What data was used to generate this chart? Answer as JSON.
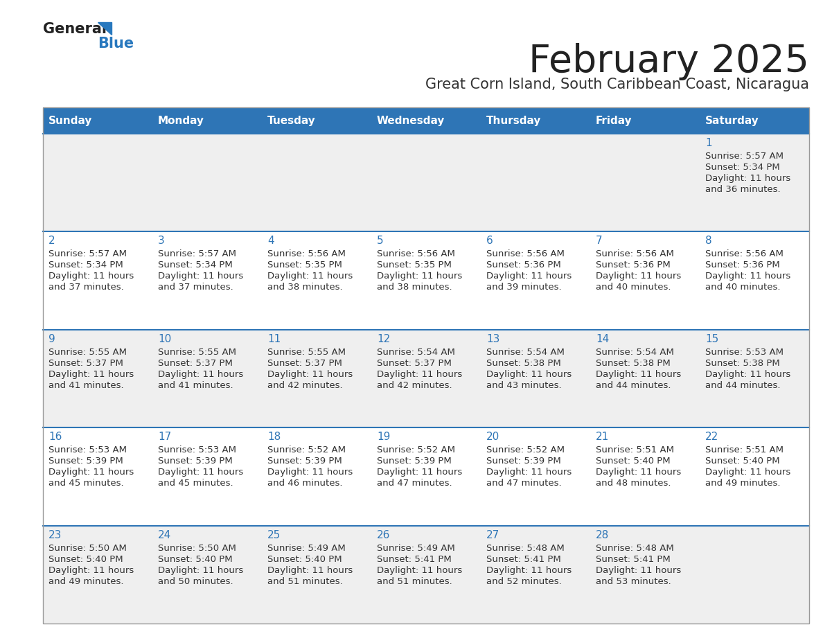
{
  "title": "February 2025",
  "subtitle": "Great Corn Island, South Caribbean Coast, Nicaragua",
  "header_color": "#2E75B6",
  "header_text_color": "#FFFFFF",
  "day_headers": [
    "Sunday",
    "Monday",
    "Tuesday",
    "Wednesday",
    "Thursday",
    "Friday",
    "Saturday"
  ],
  "title_color": "#222222",
  "subtitle_color": "#333333",
  "cell_bg": "#EFEFEF",
  "cell_bg_white": "#FFFFFF",
  "separator_color": "#2E75B6",
  "day_num_color": "#2E75B6",
  "text_color": "#333333",
  "logo_general_color": "#222222",
  "logo_blue_color": "#2878BE",
  "calendar_data": [
    {
      "day": 1,
      "col": 6,
      "row": 0,
      "sunrise": "5:57 AM",
      "sunset": "5:34 PM",
      "daylight_hours": 11,
      "daylight_minutes": 36
    },
    {
      "day": 2,
      "col": 0,
      "row": 1,
      "sunrise": "5:57 AM",
      "sunset": "5:34 PM",
      "daylight_hours": 11,
      "daylight_minutes": 37
    },
    {
      "day": 3,
      "col": 1,
      "row": 1,
      "sunrise": "5:57 AM",
      "sunset": "5:34 PM",
      "daylight_hours": 11,
      "daylight_minutes": 37
    },
    {
      "day": 4,
      "col": 2,
      "row": 1,
      "sunrise": "5:56 AM",
      "sunset": "5:35 PM",
      "daylight_hours": 11,
      "daylight_minutes": 38
    },
    {
      "day": 5,
      "col": 3,
      "row": 1,
      "sunrise": "5:56 AM",
      "sunset": "5:35 PM",
      "daylight_hours": 11,
      "daylight_minutes": 38
    },
    {
      "day": 6,
      "col": 4,
      "row": 1,
      "sunrise": "5:56 AM",
      "sunset": "5:36 PM",
      "daylight_hours": 11,
      "daylight_minutes": 39
    },
    {
      "day": 7,
      "col": 5,
      "row": 1,
      "sunrise": "5:56 AM",
      "sunset": "5:36 PM",
      "daylight_hours": 11,
      "daylight_minutes": 40
    },
    {
      "day": 8,
      "col": 6,
      "row": 1,
      "sunrise": "5:56 AM",
      "sunset": "5:36 PM",
      "daylight_hours": 11,
      "daylight_minutes": 40
    },
    {
      "day": 9,
      "col": 0,
      "row": 2,
      "sunrise": "5:55 AM",
      "sunset": "5:37 PM",
      "daylight_hours": 11,
      "daylight_minutes": 41
    },
    {
      "day": 10,
      "col": 1,
      "row": 2,
      "sunrise": "5:55 AM",
      "sunset": "5:37 PM",
      "daylight_hours": 11,
      "daylight_minutes": 41
    },
    {
      "day": 11,
      "col": 2,
      "row": 2,
      "sunrise": "5:55 AM",
      "sunset": "5:37 PM",
      "daylight_hours": 11,
      "daylight_minutes": 42
    },
    {
      "day": 12,
      "col": 3,
      "row": 2,
      "sunrise": "5:54 AM",
      "sunset": "5:37 PM",
      "daylight_hours": 11,
      "daylight_minutes": 42
    },
    {
      "day": 13,
      "col": 4,
      "row": 2,
      "sunrise": "5:54 AM",
      "sunset": "5:38 PM",
      "daylight_hours": 11,
      "daylight_minutes": 43
    },
    {
      "day": 14,
      "col": 5,
      "row": 2,
      "sunrise": "5:54 AM",
      "sunset": "5:38 PM",
      "daylight_hours": 11,
      "daylight_minutes": 44
    },
    {
      "day": 15,
      "col": 6,
      "row": 2,
      "sunrise": "5:53 AM",
      "sunset": "5:38 PM",
      "daylight_hours": 11,
      "daylight_minutes": 44
    },
    {
      "day": 16,
      "col": 0,
      "row": 3,
      "sunrise": "5:53 AM",
      "sunset": "5:39 PM",
      "daylight_hours": 11,
      "daylight_minutes": 45
    },
    {
      "day": 17,
      "col": 1,
      "row": 3,
      "sunrise": "5:53 AM",
      "sunset": "5:39 PM",
      "daylight_hours": 11,
      "daylight_minutes": 45
    },
    {
      "day": 18,
      "col": 2,
      "row": 3,
      "sunrise": "5:52 AM",
      "sunset": "5:39 PM",
      "daylight_hours": 11,
      "daylight_minutes": 46
    },
    {
      "day": 19,
      "col": 3,
      "row": 3,
      "sunrise": "5:52 AM",
      "sunset": "5:39 PM",
      "daylight_hours": 11,
      "daylight_minutes": 47
    },
    {
      "day": 20,
      "col": 4,
      "row": 3,
      "sunrise": "5:52 AM",
      "sunset": "5:39 PM",
      "daylight_hours": 11,
      "daylight_minutes": 47
    },
    {
      "day": 21,
      "col": 5,
      "row": 3,
      "sunrise": "5:51 AM",
      "sunset": "5:40 PM",
      "daylight_hours": 11,
      "daylight_minutes": 48
    },
    {
      "day": 22,
      "col": 6,
      "row": 3,
      "sunrise": "5:51 AM",
      "sunset": "5:40 PM",
      "daylight_hours": 11,
      "daylight_minutes": 49
    },
    {
      "day": 23,
      "col": 0,
      "row": 4,
      "sunrise": "5:50 AM",
      "sunset": "5:40 PM",
      "daylight_hours": 11,
      "daylight_minutes": 49
    },
    {
      "day": 24,
      "col": 1,
      "row": 4,
      "sunrise": "5:50 AM",
      "sunset": "5:40 PM",
      "daylight_hours": 11,
      "daylight_minutes": 50
    },
    {
      "day": 25,
      "col": 2,
      "row": 4,
      "sunrise": "5:49 AM",
      "sunset": "5:40 PM",
      "daylight_hours": 11,
      "daylight_minutes": 51
    },
    {
      "day": 26,
      "col": 3,
      "row": 4,
      "sunrise": "5:49 AM",
      "sunset": "5:41 PM",
      "daylight_hours": 11,
      "daylight_minutes": 51
    },
    {
      "day": 27,
      "col": 4,
      "row": 4,
      "sunrise": "5:48 AM",
      "sunset": "5:41 PM",
      "daylight_hours": 11,
      "daylight_minutes": 52
    },
    {
      "day": 28,
      "col": 5,
      "row": 4,
      "sunrise": "5:48 AM",
      "sunset": "5:41 PM",
      "daylight_hours": 11,
      "daylight_minutes": 53
    }
  ]
}
